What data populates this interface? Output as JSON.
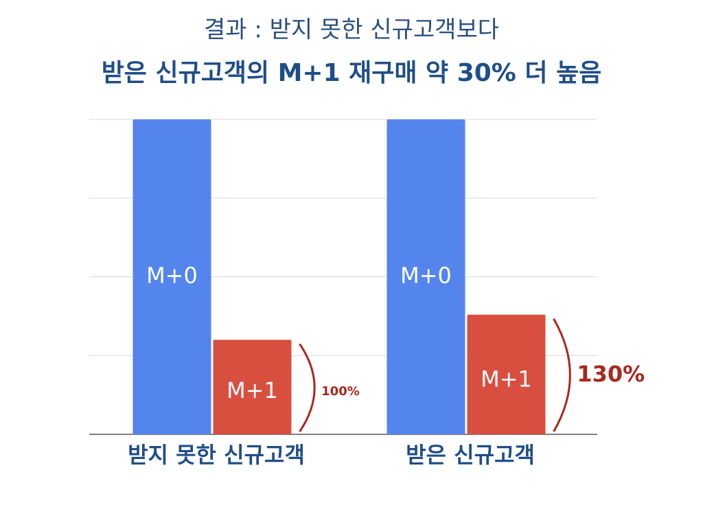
{
  "chart_data": {
    "type": "bar",
    "title": "결과 : 받지 못한 신규고객보다",
    "subtitle": "받은 신규고객의 M+1 재구매 약 30% 더 높음",
    "categories": [
      "받지 못한 신규고객",
      "받은 신규고객"
    ],
    "series": [
      {
        "name": "M+0",
        "color": "#5485ec",
        "values": [
          100,
          100
        ]
      },
      {
        "name": "M+1",
        "color": "#d94f3f",
        "values": [
          30,
          38
        ]
      }
    ],
    "ylim": [
      0,
      100
    ],
    "yticks": [
      0,
      25,
      50,
      75,
      100
    ],
    "grid": true,
    "annotations": [
      {
        "text": "100%"
      },
      {
        "text": "130%"
      }
    ],
    "annotation_color": "#a8281e"
  }
}
